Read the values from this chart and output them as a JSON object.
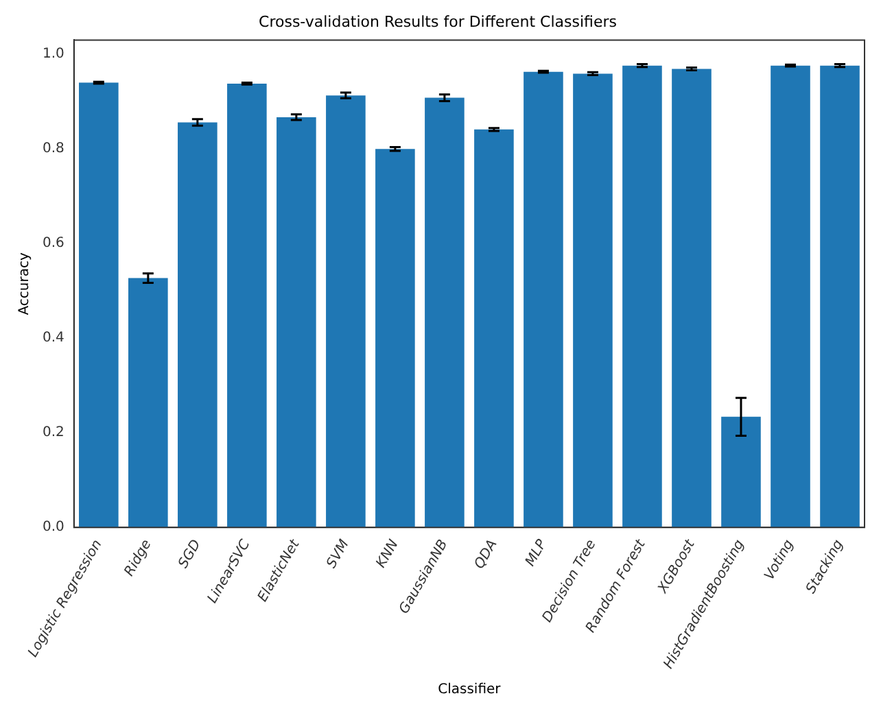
{
  "chart_data": {
    "type": "bar",
    "title": "Cross-validation Results for Different Classifiers",
    "xlabel": "Classifier",
    "ylabel": "Accuracy",
    "categories": [
      "Logistic Regression",
      "Ridge",
      "SGD",
      "LinearSVC",
      "ElasticNet",
      "SVM",
      "KNN",
      "GaussianNB",
      "QDA",
      "MLP",
      "Decision Tree",
      "Random Forest",
      "XGBoost",
      "HistGradientBoosting",
      "Voting",
      "Stacking"
    ],
    "values": [
      0.94,
      0.527,
      0.856,
      0.938,
      0.867,
      0.913,
      0.8,
      0.908,
      0.841,
      0.963,
      0.959,
      0.976,
      0.969,
      0.234,
      0.976,
      0.976
    ],
    "errors": [
      0.002,
      0.01,
      0.007,
      0.002,
      0.006,
      0.006,
      0.004,
      0.007,
      0.003,
      0.002,
      0.003,
      0.003,
      0.003,
      0.04,
      0.002,
      0.003
    ],
    "color": "#1f77b4",
    "ylim": [
      0,
      1.03
    ],
    "yticks": [
      {
        "value": 0,
        "label": "0.0"
      },
      0.2,
      0.4,
      0.6,
      0.8,
      {
        "value": 1,
        "label": "1.0"
      }
    ],
    "grid": false,
    "legend": false
  }
}
